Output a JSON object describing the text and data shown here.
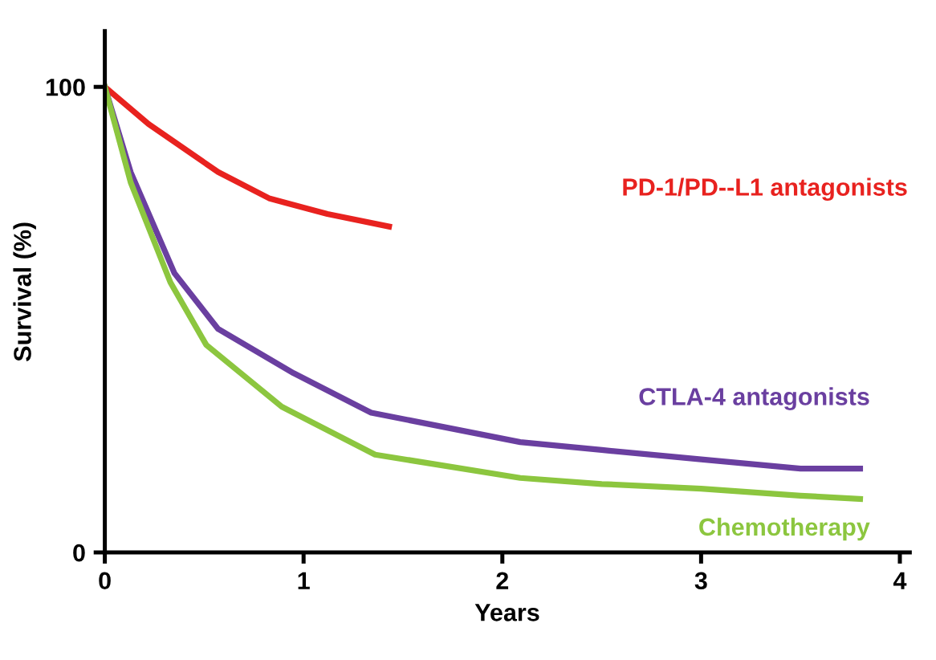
{
  "chart_data": {
    "type": "line",
    "xlabel": "Years",
    "ylabel": "Survival (%)",
    "xlim": [
      0,
      4.05
    ],
    "xticks": [
      0,
      1,
      2,
      3,
      4
    ],
    "ylim": [
      0,
      112
    ],
    "yticks": [
      0,
      100
    ],
    "grid": false,
    "legend": false,
    "marker": "none",
    "line_style": "solid",
    "series": [
      {
        "name": "PD-1/PD--L1 antagonists",
        "color": "#e8221f",
        "x": [
          0,
          0.22,
          0.57,
          0.83,
          1.12,
          1.43
        ],
        "values": [
          100,
          92,
          81.7,
          76,
          72.7,
          70
        ]
      },
      {
        "name": "CTLA-4 antagonists",
        "color": "#6a3fa0",
        "x": [
          0,
          0.13,
          0.35,
          0.57,
          0.95,
          1.34,
          2.09,
          2.5,
          3,
          3.5,
          3.8
        ],
        "values": [
          100,
          81.7,
          60,
          48,
          38.5,
          30,
          23.7,
          22,
          20,
          18,
          18
        ]
      },
      {
        "name": "Chemotherapy",
        "color": "#8cc63f",
        "x": [
          0,
          0.13,
          0.33,
          0.51,
          0.89,
          1.36,
          2.09,
          2.5,
          3,
          3.5,
          3.8
        ],
        "values": [
          100,
          79.5,
          58,
          44.6,
          31.3,
          21,
          16,
          14.7,
          13.7,
          12.2,
          11.5
        ]
      }
    ]
  }
}
